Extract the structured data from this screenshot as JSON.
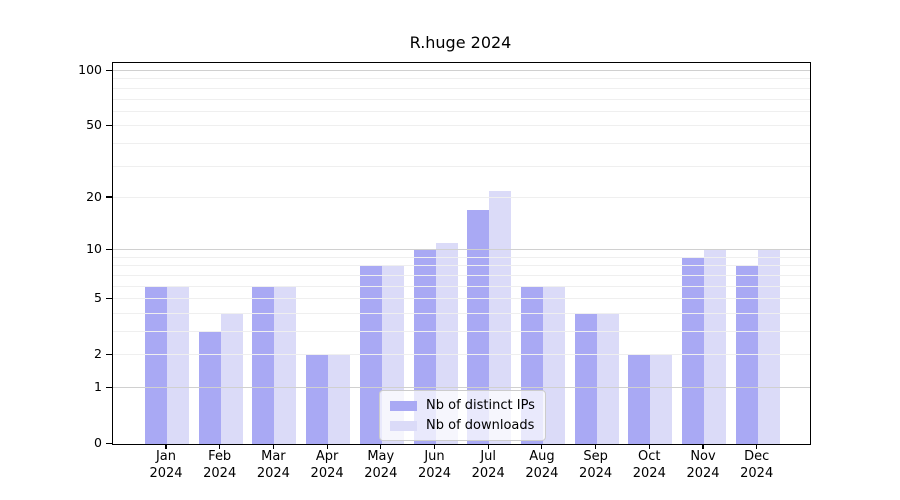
{
  "chart_data": {
    "type": "bar",
    "title": "R.huge 2024",
    "categories": [
      "Jan",
      "Feb",
      "Mar",
      "Apr",
      "May",
      "Jun",
      "Jul",
      "Aug",
      "Sep",
      "Oct",
      "Nov",
      "Dec"
    ],
    "x_sub_label": "2024",
    "series": [
      {
        "name": "Nb of distinct IPs",
        "color": "#a9a9f4",
        "values": [
          6,
          3,
          6,
          2,
          8,
          10,
          17,
          6,
          4,
          2,
          9,
          8
        ]
      },
      {
        "name": "Nb of downloads",
        "color": "#dbdbf8",
        "values": [
          6,
          4,
          6,
          2,
          8,
          11,
          22,
          6,
          4,
          2,
          10,
          10
        ]
      }
    ],
    "xlabel": "",
    "ylabel": "",
    "yscale": "log1p",
    "ylim": [
      0,
      110
    ],
    "y_ticks": [
      0,
      1,
      2,
      5,
      10,
      20,
      50,
      100
    ],
    "grid": {
      "major_lines": [
        1,
        10,
        100
      ],
      "minor_lines": [
        2,
        3,
        4,
        5,
        6,
        7,
        8,
        9,
        20,
        30,
        40,
        50,
        60,
        70,
        80,
        90
      ],
      "major_color": "#d0d0d0",
      "minor_color": "#efefef"
    },
    "legend_position": "lower center",
    "background": "#ffffff"
  }
}
